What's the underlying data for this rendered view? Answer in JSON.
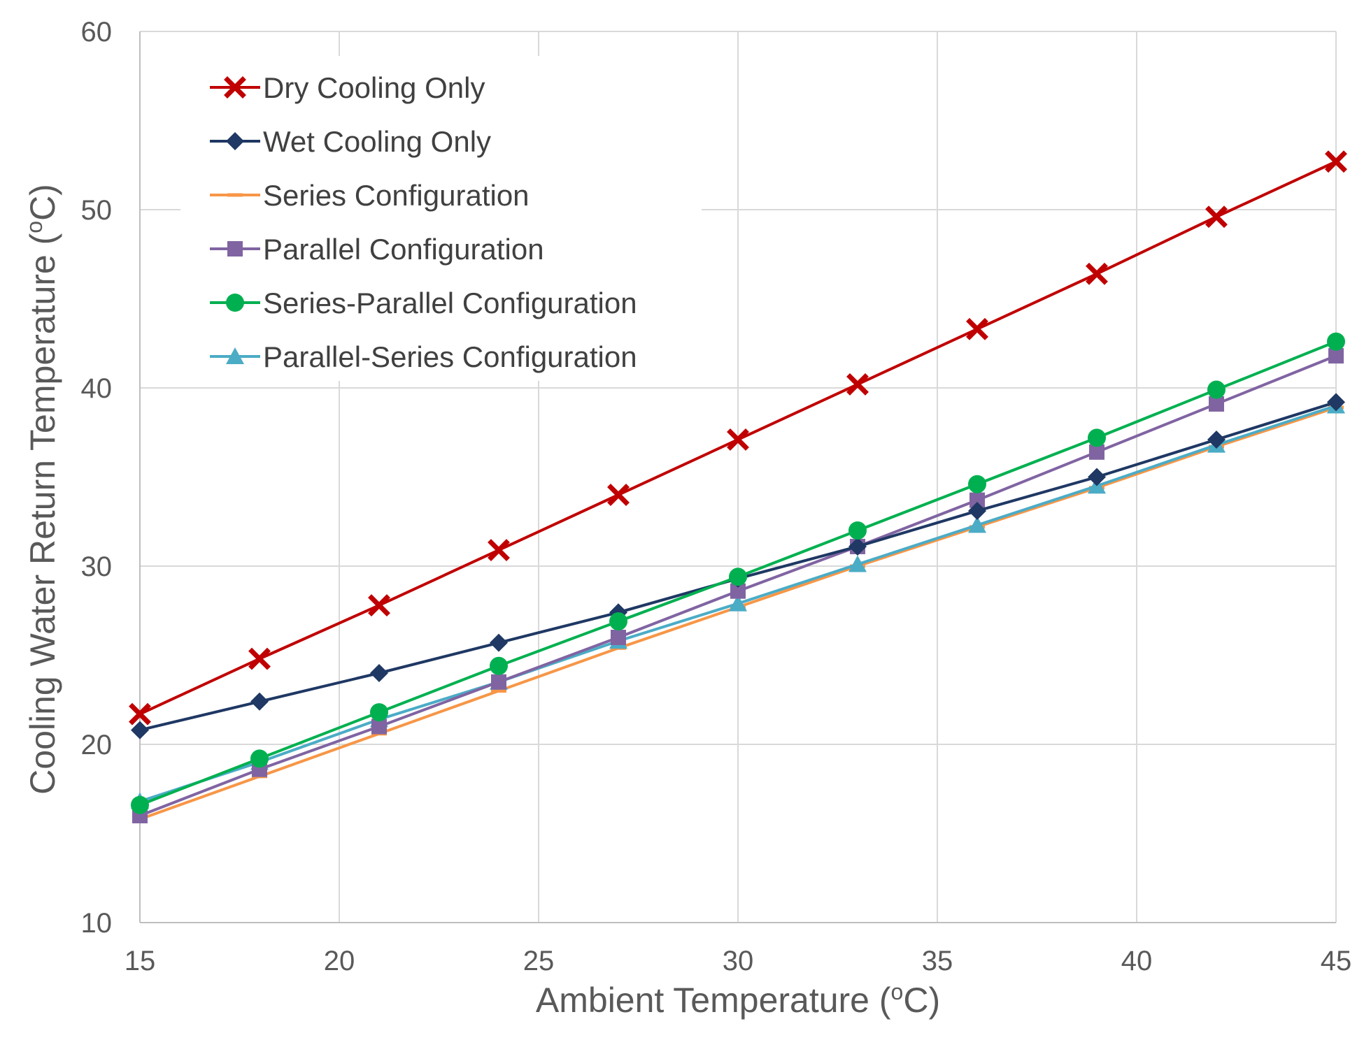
{
  "chart_data": {
    "type": "line",
    "title": "",
    "xlabel": "Ambient Temperature (",
    "xlabel_sup": "o",
    "xlabel_suffix": "C)",
    "ylabel": "Cooling Water Return Temperature (",
    "ylabel_sup": "o",
    "ylabel_suffix": "C)",
    "xlim": [
      15,
      45
    ],
    "ylim": [
      10,
      60
    ],
    "xticks": [
      15,
      20,
      25,
      30,
      35,
      40,
      45
    ],
    "yticks": [
      10,
      20,
      30,
      40,
      50,
      60
    ],
    "grid": true,
    "legend_position": "top-left",
    "x": [
      15,
      18,
      21,
      24,
      27,
      30,
      33,
      36,
      39,
      42,
      45
    ],
    "series": [
      {
        "name": "Dry Cooling Only",
        "color": "#C00000",
        "marker": "x",
        "values": [
          21.7,
          24.8,
          27.8,
          30.9,
          34.0,
          37.1,
          40.2,
          43.3,
          46.4,
          49.6,
          52.7
        ]
      },
      {
        "name": "Wet Cooling Only",
        "color": "#1F3864",
        "marker": "diamond",
        "values": [
          20.8,
          22.4,
          24.0,
          25.7,
          27.4,
          29.3,
          31.1,
          33.1,
          35.0,
          37.1,
          39.2
        ]
      },
      {
        "name": "Series Configuration",
        "color": "#F79646",
        "marker": "dash",
        "values": [
          15.8,
          18.2,
          20.6,
          23.0,
          25.4,
          27.7,
          30.0,
          32.2,
          34.4,
          36.7,
          38.9
        ]
      },
      {
        "name": "Parallel Configuration",
        "color": "#8064A2",
        "marker": "square",
        "values": [
          16.0,
          18.6,
          21.0,
          23.5,
          26.0,
          28.6,
          31.1,
          33.7,
          36.4,
          39.1,
          41.8
        ]
      },
      {
        "name": "Series-Parallel Configuration",
        "color": "#00B050",
        "marker": "circle",
        "values": [
          16.6,
          19.2,
          21.8,
          24.4,
          26.9,
          29.4,
          32.0,
          34.6,
          37.2,
          39.9,
          42.6
        ]
      },
      {
        "name": "Parallel-Series Configuration",
        "color": "#4BACC6",
        "marker": "triangle",
        "values": [
          16.8,
          19.0,
          21.4,
          23.5,
          25.8,
          27.9,
          30.1,
          32.3,
          34.5,
          36.8,
          39.0
        ]
      }
    ]
  }
}
